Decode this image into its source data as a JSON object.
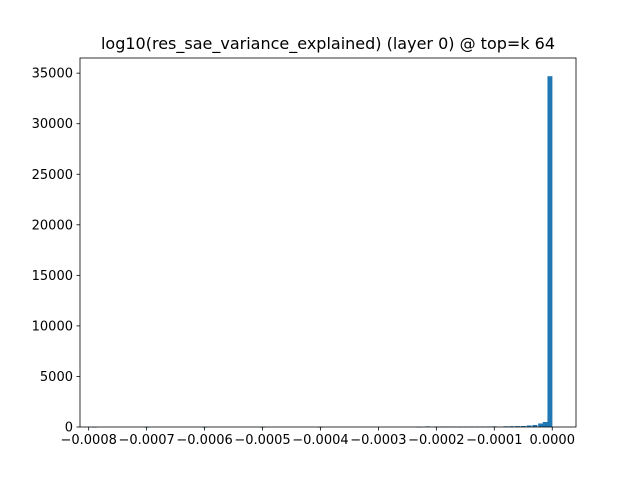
{
  "chart_data": {
    "type": "bar",
    "title": "log10(res_sae_variance_explained) (layer 0) @ top=k 64",
    "xlabel": "",
    "ylabel": "",
    "xlim": [
      -0.000815,
      4.1e-05
    ],
    "ylim": [
      0,
      36500
    ],
    "x_ticks": [
      -0.0008,
      -0.0007,
      -0.0006,
      -0.0005,
      -0.0004,
      -0.0003,
      -0.0002,
      -0.0001,
      0.0
    ],
    "x_tick_labels": [
      "−0.0008",
      "−0.0007",
      "−0.0006",
      "−0.0005",
      "−0.0004",
      "−0.0003",
      "−0.0002",
      "−0.0001",
      "0.0000"
    ],
    "y_ticks": [
      0,
      5000,
      10000,
      15000,
      20000,
      25000,
      30000,
      35000
    ],
    "y_tick_labels": [
      "0",
      "5000",
      "10000",
      "15000",
      "20000",
      "25000",
      "30000",
      "35000"
    ],
    "grid": false,
    "legend": false,
    "bar_color": "#1f77b4",
    "bins": {
      "x": [
        -0.00079,
        -0.0007,
        -0.0006,
        -0.0005,
        -0.0004,
        -0.00023,
        -0.000215,
        -0.0002,
        -0.00019,
        -0.00018,
        -0.00017,
        -0.00016,
        -0.00015,
        -0.00014,
        -0.00013,
        -0.00012,
        -0.00011,
        -0.0001,
        -8e-05,
        -7e-05,
        -6e-05,
        -5e-05,
        -4e-05,
        -3e-05,
        -2e-05,
        -1.2e-05,
        -4e-06
      ],
      "values": [
        5,
        3,
        3,
        3,
        3,
        8,
        60,
        40,
        45,
        40,
        40,
        35,
        40,
        35,
        40,
        45,
        50,
        60,
        70,
        80,
        90,
        100,
        150,
        200,
        350,
        500,
        34700
      ]
    }
  }
}
